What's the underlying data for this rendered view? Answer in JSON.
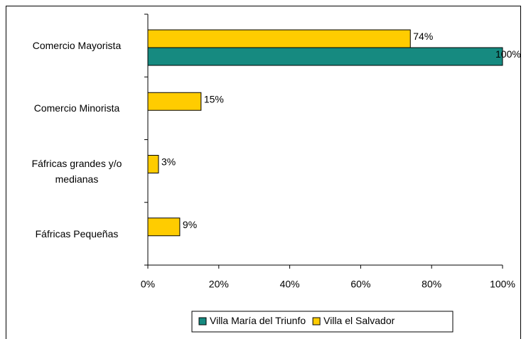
{
  "chart_data": {
    "type": "bar",
    "orientation": "horizontal",
    "categories": [
      "Comercio Mayorista",
      "Comercio Minorista",
      "Fáfricas grandes y/o medianas",
      "Fáfricas Pequeñas"
    ],
    "series": [
      {
        "name": "Villa María del Triunfo",
        "color": "#168a80",
        "values": [
          100,
          null,
          null,
          null
        ],
        "value_labels": [
          "100%",
          null,
          null,
          null
        ]
      },
      {
        "name": "Villa el Salvador",
        "color": "#ffcc00",
        "values": [
          74,
          15,
          3,
          9
        ],
        "value_labels": [
          "74%",
          "15%",
          "3%",
          "9%"
        ]
      }
    ],
    "xlim": [
      0,
      100
    ],
    "xticks": [
      {
        "value": 0,
        "label": "0%"
      },
      {
        "value": 20,
        "label": "20%"
      },
      {
        "value": 40,
        "label": "40%"
      },
      {
        "value": 60,
        "label": "60%"
      },
      {
        "value": 80,
        "label": "80%"
      },
      {
        "value": 100,
        "label": "100%"
      }
    ],
    "legend": "bottom"
  }
}
